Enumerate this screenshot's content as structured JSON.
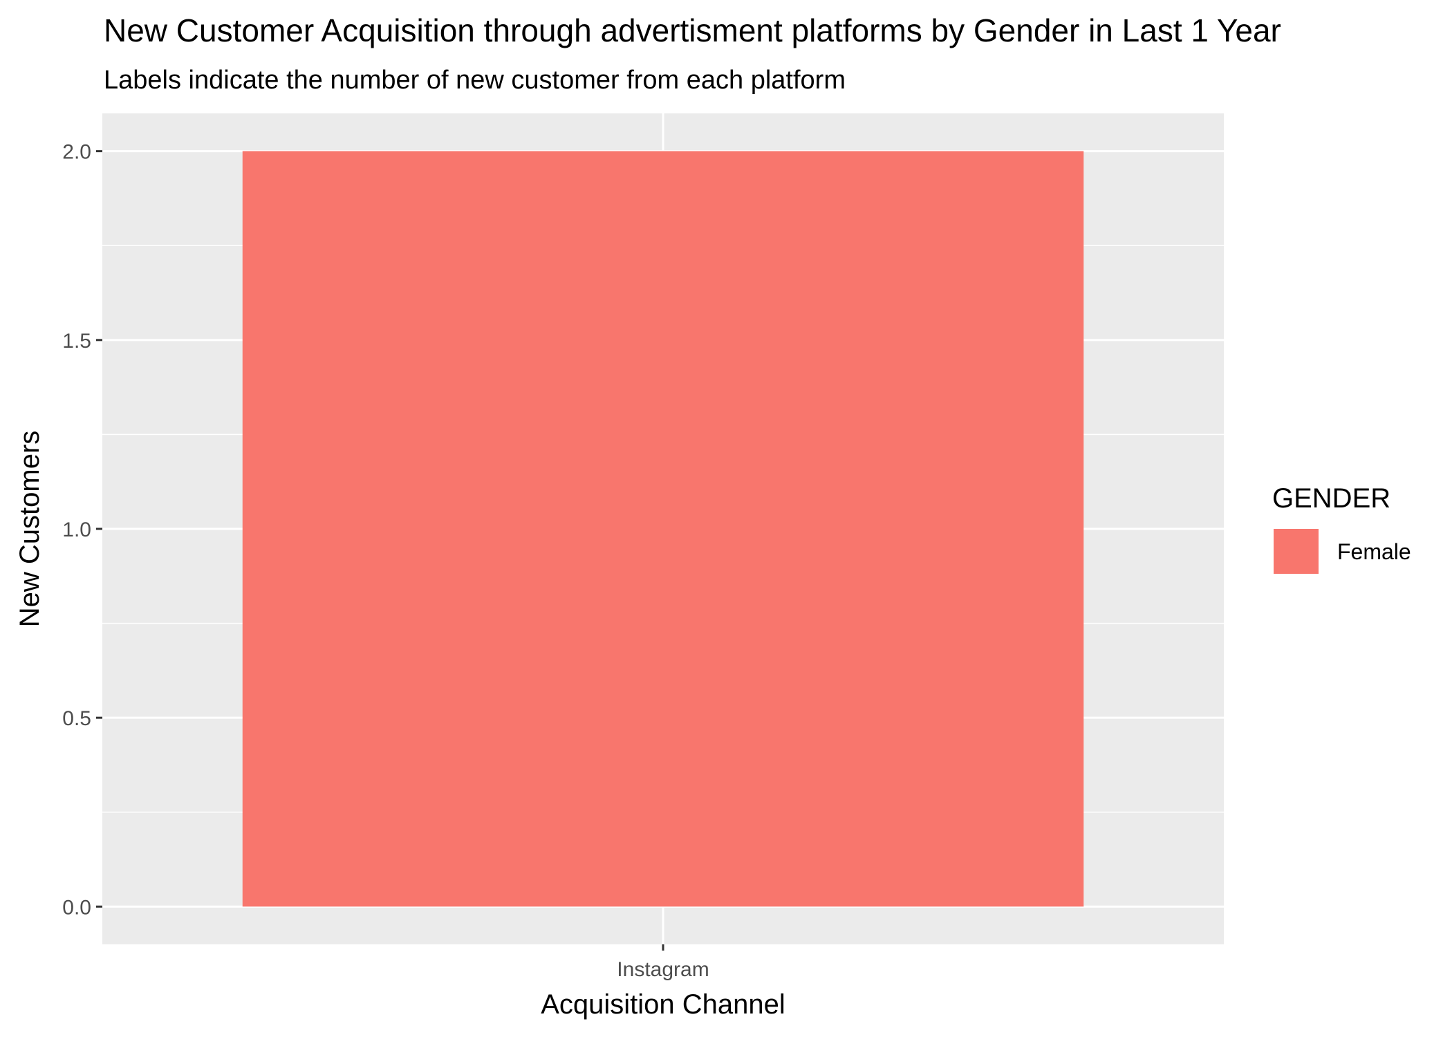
{
  "chart_data": {
    "type": "bar",
    "title": "New Customer Acquisition through advertisment platforms by Gender in Last 1 Year",
    "subtitle": "Labels indicate the number of new customer from each platform",
    "xlabel": "Acquisition Channel",
    "ylabel": "New Customers",
    "categories": [
      "Instagram"
    ],
    "series": [
      {
        "name": "Female",
        "values": [
          2
        ],
        "color": "#F8766D"
      }
    ],
    "ylim": [
      -0.1,
      2.1
    ],
    "yticks": [
      0.0,
      0.5,
      1.0,
      1.5,
      2.0
    ],
    "ytick_labels": [
      "0.0",
      "0.5",
      "1.0",
      "1.5",
      "2.0"
    ],
    "grid": true,
    "legend": {
      "title": "GENDER",
      "position": "right"
    },
    "panel_background": "#EBEBEB"
  }
}
